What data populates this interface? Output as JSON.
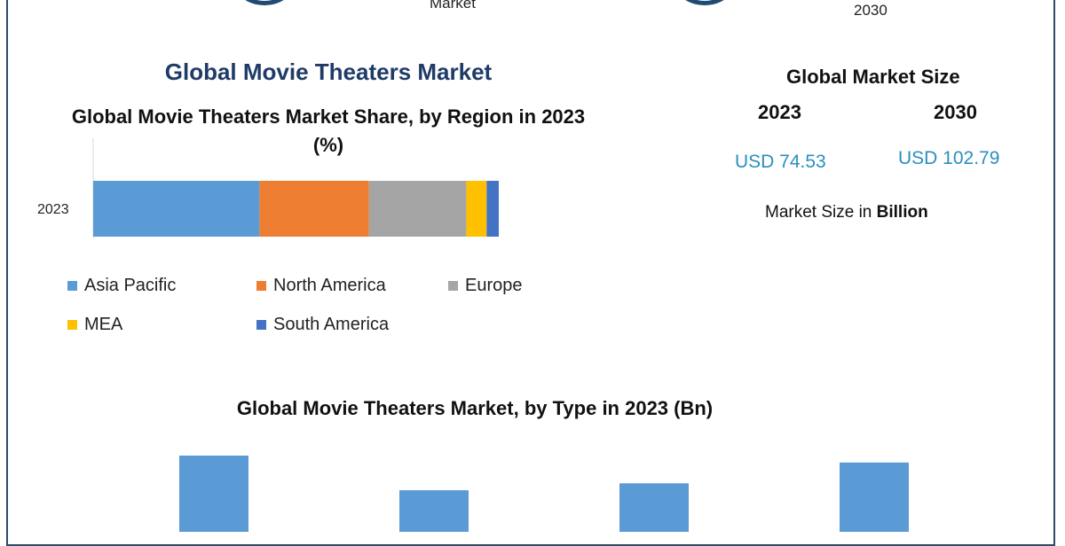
{
  "header": {
    "top_market_text": "Market",
    "top_year_text": "2030",
    "title": "Global Movie Theaters Market"
  },
  "market_size": {
    "title": "Global Market Size",
    "year_start": "2023",
    "year_end": "2030",
    "value_start": "USD 74.53",
    "value_end": "USD 102.79",
    "unit_prefix": "Market Size in ",
    "unit_bold": "Billion"
  },
  "colors": {
    "frame": "#2e4a66",
    "title_navy": "#1f3b67",
    "value_blue": "#2a8fbf",
    "asia_pacific": "#5b9bd5",
    "north_america": "#ed7d31",
    "europe": "#a5a5a5",
    "mea": "#ffc000",
    "south_america": "#4472c4",
    "type_bar": "#5b9bd5"
  },
  "chart_data": [
    {
      "type": "bar",
      "orientation": "horizontal",
      "stacked": true,
      "title": "Global Movie Theaters Market Share, by Region in 2023 (%)",
      "categories": [
        "2023"
      ],
      "series": [
        {
          "name": "Asia Pacific",
          "color": "#5b9bd5",
          "values": [
            41
          ]
        },
        {
          "name": "North America",
          "color": "#ed7d31",
          "values": [
            27
          ]
        },
        {
          "name": "Europe",
          "color": "#a5a5a5",
          "values": [
            24
          ]
        },
        {
          "name": "MEA",
          "color": "#ffc000",
          "values": [
            5
          ]
        },
        {
          "name": "South America",
          "color": "#4472c4",
          "values": [
            3
          ]
        }
      ],
      "xlim": [
        0,
        100
      ],
      "legend": "bottom"
    },
    {
      "type": "bar",
      "orientation": "vertical",
      "title": "Global Movie Theaters Market, by Type in 2023 (Bn)",
      "values": [
        22,
        12,
        14,
        20
      ],
      "ylim": [
        0,
        22
      ],
      "color": "#5b9bd5"
    }
  ]
}
